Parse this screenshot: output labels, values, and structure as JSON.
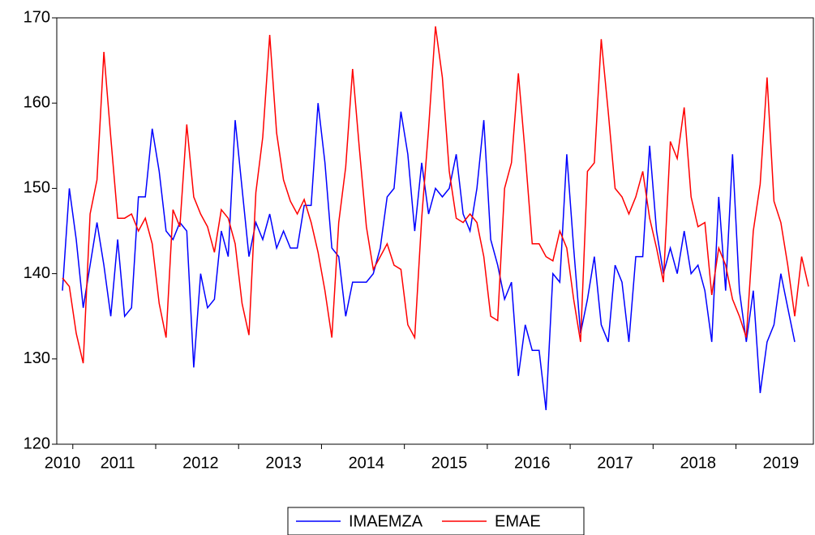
{
  "chart_data": {
    "type": "line",
    "categories": [
      "2010",
      null,
      null,
      null,
      null,
      null,
      null,
      null,
      "2011",
      null,
      null,
      null,
      null,
      null,
      null,
      null,
      null,
      null,
      null,
      null,
      "2012",
      null,
      null,
      null,
      null,
      null,
      null,
      null,
      null,
      null,
      null,
      null,
      "2013",
      null,
      null,
      null,
      null,
      null,
      null,
      null,
      null,
      null,
      null,
      null,
      "2014",
      null,
      null,
      null,
      null,
      null,
      null,
      null,
      null,
      null,
      null,
      null,
      "2015",
      null,
      null,
      null,
      null,
      null,
      null,
      null,
      null,
      null,
      null,
      null,
      "2016",
      null,
      null,
      null,
      null,
      null,
      null,
      null,
      null,
      null,
      null,
      null,
      "2017",
      null,
      null,
      null,
      null,
      null,
      null,
      null,
      null,
      null,
      null,
      null,
      "2018",
      null,
      null,
      null,
      null,
      null,
      null,
      null,
      null,
      null,
      null,
      null,
      "2019",
      null,
      null,
      null,
      null
    ],
    "series": [
      {
        "name": "IMAEMZA",
        "color": "#0000ff",
        "values": [
          138,
          150,
          144,
          136,
          141,
          146,
          141,
          135,
          144,
          135,
          136,
          149,
          149,
          157,
          152,
          145,
          144,
          146,
          145,
          129,
          140,
          136,
          137,
          145,
          142,
          158,
          150,
          142,
          146,
          144,
          147,
          143,
          145,
          143,
          143,
          148,
          148,
          160,
          153,
          143,
          142,
          135,
          139,
          139,
          139,
          140,
          143,
          149,
          150,
          159,
          154,
          145,
          153,
          147,
          150,
          149,
          150,
          154,
          147,
          145,
          150,
          158,
          144,
          141,
          137,
          139,
          128,
          134,
          131,
          131,
          124,
          140,
          139,
          154,
          143,
          133,
          137,
          142,
          134,
          132,
          141,
          139,
          132,
          142,
          142,
          155,
          145,
          140,
          143,
          140,
          145,
          140,
          141,
          138,
          132,
          149,
          138,
          154,
          138,
          132,
          138,
          126,
          132,
          134,
          140,
          136,
          132,
          null,
          null
        ]
      },
      {
        "name": "EMAE",
        "color": "#ff0000",
        "values": [
          139.5,
          138.5,
          133,
          129.5,
          147,
          151,
          166,
          156,
          146.5,
          146.5,
          147,
          145,
          146.5,
          143.5,
          136.5,
          132.5,
          147.5,
          145.5,
          157.5,
          149,
          147,
          145.5,
          142.5,
          147.5,
          146.5,
          143.5,
          136.5,
          132.8,
          149.5,
          156,
          168,
          156.5,
          151,
          148.5,
          147,
          148.7,
          146,
          142.5,
          138,
          132.5,
          146,
          152.5,
          164,
          154.5,
          145.5,
          140.5,
          142,
          143.5,
          141,
          140.5,
          134,
          132.5,
          146.5,
          157,
          169,
          163,
          152,
          146.5,
          146,
          147,
          146,
          142,
          135,
          134.5,
          150,
          153,
          163.5,
          154,
          143.5,
          143.5,
          142,
          141.5,
          145,
          143,
          137,
          132,
          152,
          153,
          167.5,
          159,
          150,
          149,
          147,
          149,
          152,
          146.5,
          143,
          139,
          155.5,
          153.5,
          159.5,
          149,
          145.5,
          146,
          137.5,
          143,
          141,
          137,
          135,
          132.5,
          145,
          150.5,
          163,
          148.5,
          146,
          141,
          135,
          142,
          138.5
        ]
      }
    ],
    "ylim": [
      120,
      170
    ],
    "yticks": [
      120,
      130,
      140,
      150,
      160,
      170
    ]
  }
}
